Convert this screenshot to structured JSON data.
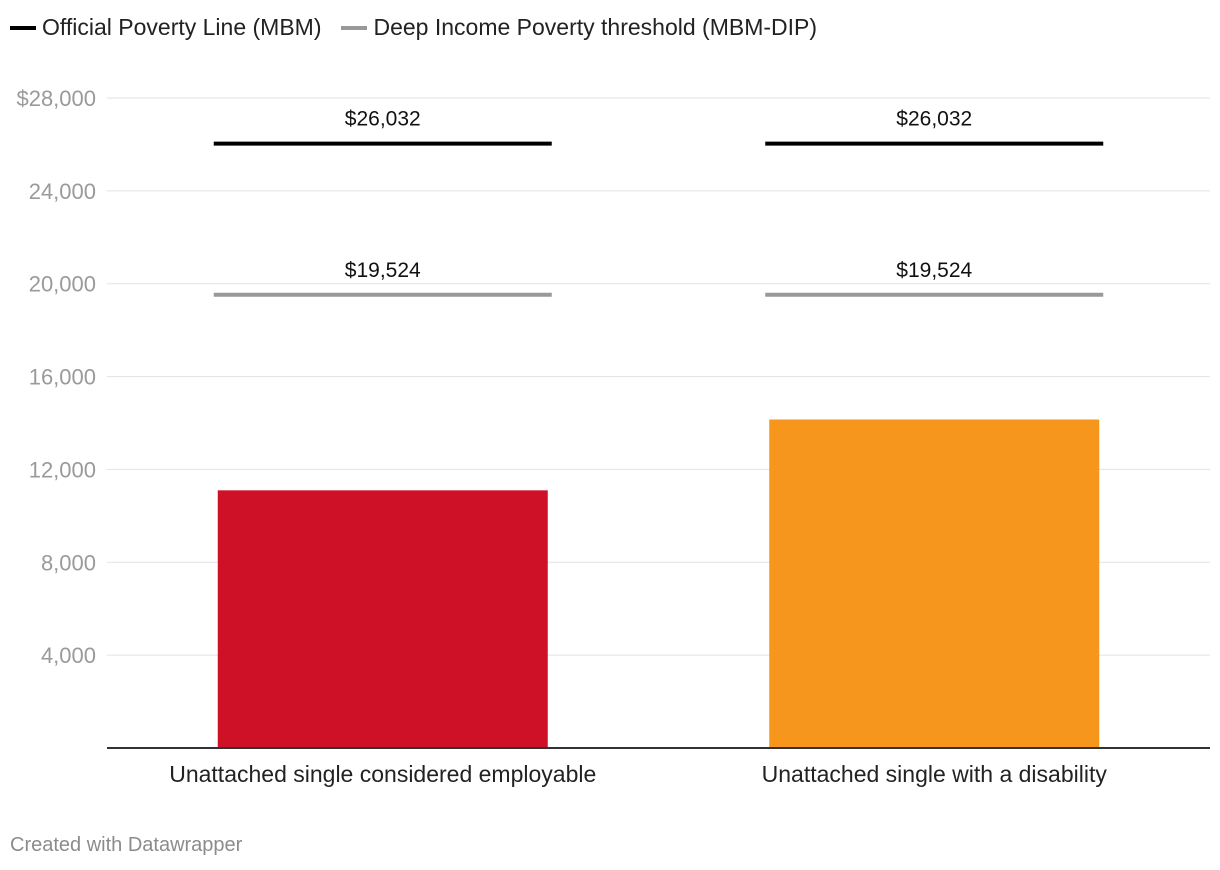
{
  "chart_data": {
    "type": "bar",
    "title": "",
    "xlabel": "",
    "ylabel": "",
    "categories": [
      "Unattached single considered employable",
      "Unattached single with a disability"
    ],
    "values": [
      11100,
      14150
    ],
    "bar_colors": [
      "#cf1128",
      "#f6961d"
    ],
    "ylim": [
      0,
      28000
    ],
    "yticks": [
      {
        "value": 4000,
        "label": "4,000"
      },
      {
        "value": 8000,
        "label": "8,000"
      },
      {
        "value": 12000,
        "label": "12,000"
      },
      {
        "value": 16000,
        "label": "16,000"
      },
      {
        "value": 20000,
        "label": "20,000"
      },
      {
        "value": 24000,
        "label": "24,000"
      },
      {
        "value": 28000,
        "label": "$28,000"
      }
    ],
    "grid": true,
    "reference_lines": [
      {
        "name": "Official Poverty Line (MBM)",
        "value": 26032,
        "label": "$26,032",
        "color": "#000000"
      },
      {
        "name": "Deep Income Poverty threshold (MBM-DIP)",
        "value": 19524,
        "label": "$19,524",
        "color": "#999999"
      }
    ],
    "legend": {
      "position": "top-left",
      "items": [
        {
          "label": "Official Poverty Line (MBM)",
          "color": "#000000"
        },
        {
          "label": "Deep Income Poverty threshold (MBM-DIP)",
          "color": "#999999"
        }
      ]
    }
  },
  "footer": {
    "credit": "Created with Datawrapper"
  }
}
